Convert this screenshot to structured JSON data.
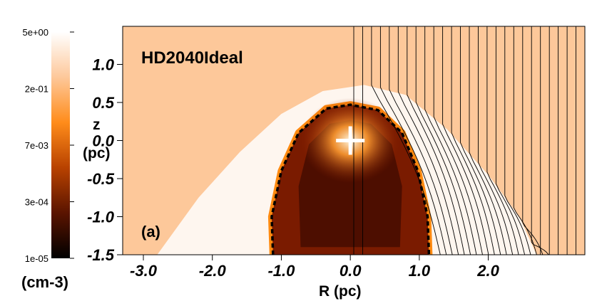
{
  "colors": {
    "background_density": "#fdc89a",
    "bowshock_shell": "#fef6ef",
    "cavity": "#7a1b00",
    "cavity_inner": "#4d0e00",
    "shock_edge": "#ff8a10",
    "field_lines": "#000000",
    "star_marker": "#ffffff"
  },
  "colorbar": {
    "tick_labels": [
      "5e+00",
      "2e-01",
      "7e-03",
      "3e-04",
      "1e-05"
    ],
    "unit_label": "(cm-3)",
    "gradient_stops": [
      "#ffffff",
      "#fdc89a",
      "#ff8c1a",
      "#b84200",
      "#5a1400",
      "#000000"
    ]
  },
  "chart_data": {
    "type": "heatmap",
    "title": "HD2040Ideal",
    "panel_label": "(a)",
    "xlabel": "R (pc)",
    "ylabel": "z (pc)",
    "ylabel_parts": [
      "z",
      "(pc)"
    ],
    "xlim": [
      -3.3,
      3.4
    ],
    "ylim": [
      -1.5,
      1.5
    ],
    "x_ticks": [
      {
        "value": -3.0,
        "label": "-3.0"
      },
      {
        "value": -2.0,
        "label": "-2.0"
      },
      {
        "value": -1.0,
        "label": "-1.0"
      },
      {
        "value": 0.0,
        "label": "0.0"
      },
      {
        "value": 1.0,
        "label": "1.0"
      },
      {
        "value": 2.0,
        "label": "2.0"
      }
    ],
    "y_ticks": [
      {
        "value": 1.0,
        "label": "1.0"
      },
      {
        "value": 0.5,
        "label": "0.5"
      },
      {
        "value": 0.0,
        "label": "0.0"
      },
      {
        "value": -0.5,
        "label": "-0.5"
      },
      {
        "value": -1.0,
        "label": "-1.0"
      },
      {
        "value": -1.5,
        "label": "-1.5"
      }
    ],
    "star_position": {
      "R": 0.0,
      "z": 0.0
    },
    "outer_bowshock": [
      [
        -2.8,
        -1.5
      ],
      [
        -2.2,
        -0.75
      ],
      [
        -1.6,
        -0.15
      ],
      [
        -1.0,
        0.35
      ],
      [
        -0.4,
        0.65
      ],
      [
        0.2,
        0.73
      ],
      [
        0.8,
        0.6
      ],
      [
        1.4,
        0.15
      ],
      [
        2.0,
        -0.45
      ],
      [
        2.45,
        -1.0
      ],
      [
        2.7,
        -1.5
      ]
    ],
    "cavity_boundary": [
      [
        -1.12,
        -1.5
      ],
      [
        -1.14,
        -1.0
      ],
      [
        -1.0,
        -0.4
      ],
      [
        -0.75,
        0.1
      ],
      [
        -0.35,
        0.42
      ],
      [
        0.0,
        0.47
      ],
      [
        0.4,
        0.4
      ],
      [
        0.75,
        0.1
      ],
      [
        0.98,
        -0.4
      ],
      [
        1.12,
        -1.0
      ],
      [
        1.14,
        -1.5
      ]
    ],
    "inner_region": [
      [
        -0.72,
        -1.4
      ],
      [
        -0.75,
        -0.6
      ],
      [
        -0.6,
        -0.05
      ],
      [
        -0.3,
        0.22
      ],
      [
        0.0,
        0.27
      ],
      [
        0.3,
        0.22
      ],
      [
        0.6,
        -0.05
      ],
      [
        0.75,
        -0.6
      ],
      [
        0.72,
        -1.4
      ]
    ],
    "field_line_count": 26
  }
}
